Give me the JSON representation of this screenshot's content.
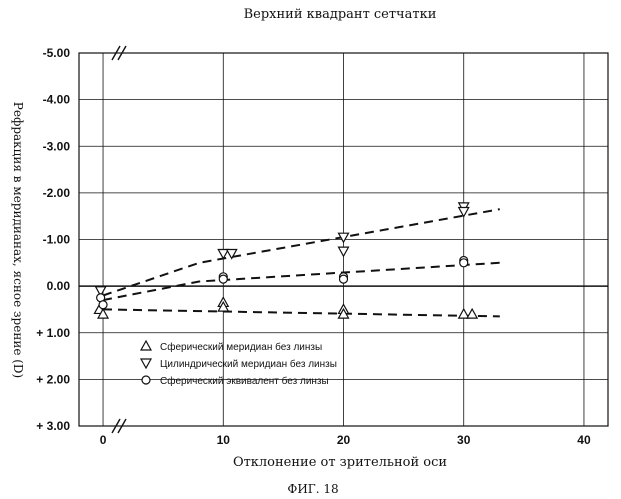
{
  "title": "Верхний квадрант сетчатки",
  "figure_label": "ФИГ. 18",
  "chart_data": {
    "type": "scatter",
    "title": "Верхний квадрант сетчатки",
    "xlabel": "Отклонение от зрительной оси",
    "ylabel": "Рефракция в меридианах, ясное зрение (D)",
    "xlim": [
      -2,
      42
    ],
    "ylim": [
      -5,
      3
    ],
    "y_axis_inverted": true,
    "x_ticks": [
      0,
      10,
      20,
      30,
      40
    ],
    "y_ticks": [
      {
        "value": -5,
        "label": "-5.00"
      },
      {
        "value": -4,
        "label": "-4.00"
      },
      {
        "value": -3,
        "label": "-3.00"
      },
      {
        "value": -2,
        "label": "-2.00"
      },
      {
        "value": -1,
        "label": "-1.00"
      },
      {
        "value": 0,
        "label": "0.00"
      },
      {
        "value": 1,
        "label": "+ 1.00"
      },
      {
        "value": 2,
        "label": "+ 2.00"
      },
      {
        "value": 3,
        "label": "+ 3.00"
      }
    ],
    "grid": true,
    "axis_breaks": true,
    "legend_position": "bottom-left",
    "series": [
      {
        "name": "Сферический меридиан без линзы",
        "marker": "triangle-up",
        "points": [
          [
            -0.3,
            0.5
          ],
          [
            0,
            0.6
          ],
          [
            10,
            0.35
          ],
          [
            10,
            0.45
          ],
          [
            20,
            0.5
          ],
          [
            20,
            0.6
          ],
          [
            30,
            0.6
          ],
          [
            30.7,
            0.6
          ]
        ],
        "trend": [
          [
            0,
            0.5
          ],
          [
            33,
            0.65
          ]
        ]
      },
      {
        "name": "Цилиндрический меридиан без линзы",
        "marker": "triangle-down",
        "points": [
          [
            -0.2,
            0.1
          ],
          [
            10,
            -0.7
          ],
          [
            10.7,
            -0.7
          ],
          [
            20,
            -1.05
          ],
          [
            20,
            -0.75
          ],
          [
            30,
            -1.7
          ],
          [
            30,
            -1.6
          ]
        ],
        "trend": [
          [
            0,
            0.2
          ],
          [
            8,
            -0.5
          ],
          [
            33,
            -1.65
          ]
        ]
      },
      {
        "name": "Сферический эквивалент без линзы",
        "marker": "circle",
        "points": [
          [
            -0.2,
            0.25
          ],
          [
            0,
            0.4
          ],
          [
            10,
            -0.2
          ],
          [
            10,
            -0.15
          ],
          [
            20,
            -0.2
          ],
          [
            20,
            -0.15
          ],
          [
            30,
            -0.55
          ],
          [
            30,
            -0.5
          ]
        ],
        "trend": [
          [
            0,
            0.3
          ],
          [
            8,
            -0.1
          ],
          [
            33,
            -0.5
          ]
        ]
      }
    ]
  }
}
